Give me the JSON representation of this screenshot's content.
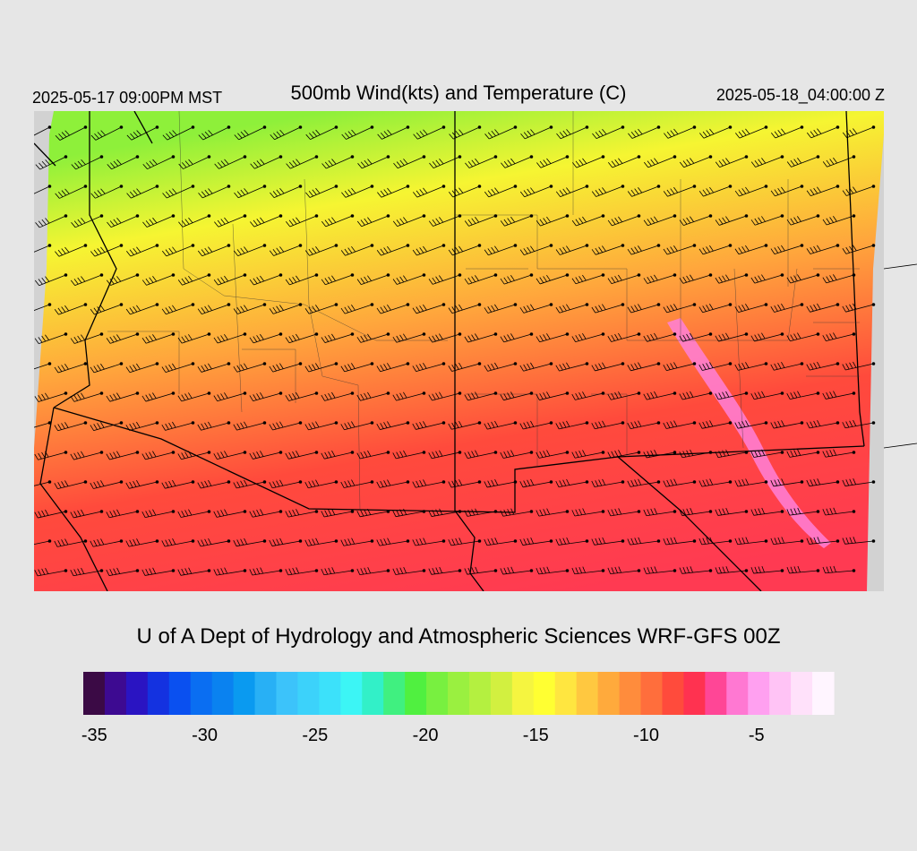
{
  "header": {
    "local_time": "2025-05-17 09:00PM MST",
    "title": "500mb Wind(kts) and Temperature (C)",
    "valid_time": "2025-05-18_04:00:00 Z"
  },
  "credit": "U of A Dept of Hydrology and Atmospheric Sciences WRF-GFS 00Z",
  "colorbar": {
    "colors": [
      "#3b0a45",
      "#3d0a91",
      "#2a14c2",
      "#1432e0",
      "#0a50f0",
      "#0a6ef2",
      "#0a82f0",
      "#0a9af0",
      "#28b0f5",
      "#3cc3fa",
      "#3cd2fa",
      "#3ce1fa",
      "#3cf5f5",
      "#32f0c8",
      "#40f080",
      "#50f040",
      "#78f040",
      "#9af040",
      "#b4f040",
      "#d2f040",
      "#f5f540",
      "#ffff32",
      "#ffe640",
      "#ffc840",
      "#ffaa3c",
      "#ff8c3c",
      "#ff6e3c",
      "#ff4b3c",
      "#ff3250",
      "#ff4696",
      "#ff78d2",
      "#ffa0f0",
      "#ffc3f5",
      "#ffe1fa",
      "#fff5ff"
    ],
    "labels": [
      "-35",
      "-30",
      "-25",
      "-20",
      "-15",
      "-10",
      "-5"
    ],
    "label_values": [
      -35,
      -30,
      -25,
      -20,
      -15,
      -10,
      -5
    ],
    "min": -35.5,
    "max": -1.5
  },
  "map_colors": {
    "cold_edge": "#8ef03a",
    "yellow": "#f6f532",
    "orange": "#ffa63c",
    "warm": "#ff4a3c",
    "hot": "#ff3a52",
    "pink_band": "#ff80d8",
    "no_data": "#d2d2d2"
  }
}
